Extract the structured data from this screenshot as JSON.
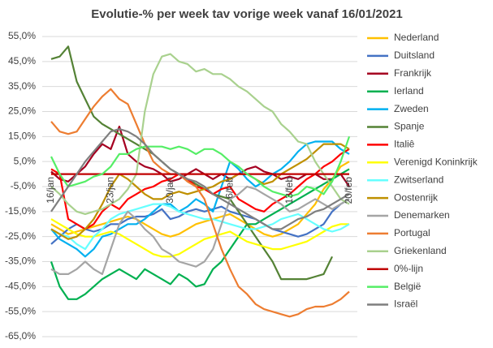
{
  "chart_data": {
    "type": "line",
    "title": "Evolutie-% per week tav vorige week vanaf 16/01/2021",
    "categories": [
      "16/jan",
      null,
      null,
      null,
      null,
      null,
      null,
      "23/jan",
      null,
      null,
      null,
      null,
      null,
      null,
      "30/jan",
      null,
      null,
      null,
      null,
      null,
      null,
      "6/feb",
      null,
      null,
      null,
      null,
      null,
      null,
      "13/feb",
      null,
      null,
      null,
      null,
      null,
      null,
      "20/feb"
    ],
    "ylim": [
      -65,
      55
    ],
    "yticks": [
      {
        "value": -65,
        "label": "-65,0%"
      },
      {
        "value": -55,
        "label": "-55,0%"
      },
      {
        "value": -45,
        "label": "-45,0%"
      },
      {
        "value": -35,
        "label": "-35,0%"
      },
      {
        "value": -25,
        "label": "-25,0%"
      },
      {
        "value": -15,
        "label": "-15,0%"
      },
      {
        "value": -5,
        "label": "-5,0%"
      },
      {
        "value": 5,
        "label": "5,0%"
      },
      {
        "value": 15,
        "label": "15,0%"
      },
      {
        "value": 25,
        "label": "25,0%"
      },
      {
        "value": 35,
        "label": "35,0%"
      },
      {
        "value": 45,
        "label": "45,0%"
      },
      {
        "value": 55,
        "label": "55,0%"
      }
    ],
    "grid": true,
    "series": [
      {
        "name": "Nederland",
        "color": "#FFC000",
        "values": [
          -20,
          -22,
          -24,
          -23,
          -22,
          -21,
          -20,
          -19,
          -18,
          -17,
          -18,
          -20,
          -22,
          -24,
          -25,
          -24,
          -22,
          -20,
          -19,
          -18,
          -17,
          -16,
          -18,
          -20,
          -22,
          -24,
          -25,
          -24,
          -22,
          -20,
          -16,
          -12,
          -6,
          -2,
          3,
          5
        ]
      },
      {
        "name": "Duitsland",
        "color": "#4472C4",
        "values": [
          -28,
          -25,
          -22,
          -20,
          -22,
          -23,
          -22,
          -20,
          -20,
          -18,
          -17,
          -17,
          -16,
          -14,
          -18,
          -17,
          -15,
          -14,
          -15,
          -14,
          -13,
          -15,
          -16,
          -17,
          -18,
          -20,
          -22,
          -23,
          -24,
          -25,
          -24,
          -22,
          -20,
          -15,
          -12,
          -10
        ]
      },
      {
        "name": "Frankrijk",
        "color": "#A50021",
        "values": [
          1,
          -2,
          -3,
          0,
          3,
          8,
          12,
          10,
          19,
          8,
          5,
          3,
          2,
          0,
          -3,
          -2,
          0,
          2,
          0,
          -2,
          0,
          -2,
          0,
          2,
          3,
          1,
          0,
          -2,
          -1,
          -2,
          0,
          0,
          -2,
          -2,
          0,
          -5
        ]
      },
      {
        "name": "Ierland",
        "color": "#00B050",
        "values": [
          -35,
          -45,
          -50,
          -50,
          -48,
          -45,
          -42,
          -40,
          -38,
          -40,
          -42,
          -38,
          -40,
          -42,
          -44,
          -40,
          -42,
          -45,
          -44,
          -38,
          -35,
          -30,
          -25,
          -20,
          -20,
          -18,
          -16,
          -14,
          -12,
          -10,
          -8,
          -6,
          -4,
          -2,
          0,
          2
        ]
      },
      {
        "name": "Zweden",
        "color": "#00B0F0",
        "values": [
          -22,
          -26,
          -28,
          -30,
          -33,
          -30,
          -25,
          -24,
          -22,
          -20,
          -20,
          -18,
          -15,
          -12,
          -12,
          -15,
          -13,
          -10,
          -12,
          -15,
          -5,
          5,
          2,
          -2,
          -5,
          -3,
          0,
          2,
          5,
          9,
          12,
          13,
          13,
          13,
          10,
          8
        ]
      },
      {
        "name": "Spanje",
        "color": "#548235",
        "values": [
          46,
          47,
          51,
          37,
          30,
          23,
          20,
          18,
          16,
          14,
          12,
          10,
          8,
          5,
          2,
          0,
          -2,
          -4,
          -6,
          -8,
          -9,
          -10,
          -15,
          -20,
          -25,
          -30,
          -35,
          -42,
          -42,
          -42,
          -42,
          -41,
          -40,
          -33,
          null,
          null
        ]
      },
      {
        "name": "Italiê",
        "color": "#FF0000",
        "values": [
          2,
          0,
          -18,
          -20,
          -22,
          -20,
          -15,
          -12,
          -14,
          -10,
          -8,
          -6,
          -5,
          -3,
          -2,
          0,
          -2,
          -5,
          -6,
          -8,
          -6,
          -5,
          -10,
          -12,
          -14,
          -15,
          -12,
          -10,
          -8,
          -5,
          -2,
          0,
          3,
          5,
          8,
          10
        ]
      },
      {
        "name": "Verenigd Koninkrijk",
        "color": "#FFFF00",
        "values": [
          -18,
          -20,
          -22,
          -24,
          -25,
          -25,
          -24,
          -23,
          -24,
          -26,
          -28,
          -30,
          -32,
          -33,
          -33,
          -32,
          -30,
          -28,
          -26,
          -25,
          -24,
          -23,
          -25,
          -27,
          -28,
          -29,
          -30,
          -30,
          -29,
          -28,
          -27,
          -25,
          -23,
          -21,
          -20,
          -20
        ]
      },
      {
        "name": "Zwitserland",
        "color": "#66FFFF",
        "values": [
          -22,
          -24,
          -25,
          -28,
          -30,
          -25,
          -22,
          -18,
          -16,
          -15,
          -14,
          -13,
          -12,
          -12,
          -13,
          -15,
          -16,
          -17,
          -18,
          -18,
          -19,
          -20,
          -21,
          -22,
          -22,
          -21,
          -20,
          -18,
          -17,
          -16,
          -18,
          -20,
          -22,
          -23,
          -22,
          -20
        ]
      },
      {
        "name": "Oostenrijk",
        "color": "#BF9000",
        "values": [
          -22,
          -24,
          -26,
          -25,
          -22,
          -18,
          -12,
          -5,
          0,
          -2,
          -5,
          -8,
          -10,
          -10,
          -8,
          -7,
          -8,
          -7,
          -6,
          -5,
          -3,
          -2,
          0,
          0,
          -2,
          -4,
          -3,
          0,
          2,
          4,
          6,
          9,
          12,
          12,
          12,
          10
        ]
      },
      {
        "name": "Denemarken",
        "color": "#A5A5A5",
        "values": [
          -38,
          -40,
          -40,
          -38,
          -35,
          -38,
          -40,
          -30,
          -20,
          -15,
          -18,
          -22,
          -25,
          -30,
          -32,
          -35,
          -36,
          -37,
          -35,
          -30,
          -20,
          -10,
          -8,
          -5,
          -6,
          -8,
          -10,
          -12,
          -15,
          -14,
          -12,
          -10,
          -12,
          -14,
          -12,
          -10
        ]
      },
      {
        "name": "Portugal",
        "color": "#ED7D31",
        "values": [
          21,
          17,
          16,
          17,
          22,
          27,
          31,
          34,
          30,
          28,
          20,
          12,
          5,
          2,
          0,
          0,
          -3,
          -5,
          -10,
          -20,
          -30,
          -38,
          -45,
          -48,
          -52,
          -54,
          -55,
          -56,
          -57,
          -56,
          -54,
          -53,
          -53,
          -52,
          -50,
          -47
        ]
      },
      {
        "name": "Griekenland",
        "color": "#A9D18E",
        "values": [
          -5,
          -8,
          -12,
          -15,
          -16,
          -15,
          -14,
          -12,
          -10,
          -6,
          0,
          25,
          40,
          47,
          48,
          45,
          44,
          41,
          42,
          40,
          40,
          38,
          35,
          33,
          30,
          27,
          25,
          20,
          17,
          13,
          12,
          5,
          0,
          -5,
          -10,
          -12
        ]
      },
      {
        "name": "0%-lijn",
        "color": "#C00000",
        "values": [
          0,
          0,
          0,
          0,
          0,
          0,
          0,
          0,
          0,
          0,
          0,
          0,
          0,
          0,
          0,
          0,
          0,
          0,
          0,
          0,
          0,
          0,
          0,
          0,
          0,
          0,
          0,
          0,
          0,
          0,
          0,
          0,
          0,
          0,
          0,
          0
        ]
      },
      {
        "name": "België",
        "color": "#55EE66",
        "values": [
          7,
          0,
          -5,
          -4,
          -3,
          -1,
          0,
          3,
          8,
          8,
          10,
          11,
          11,
          11,
          10,
          11,
          10,
          8,
          10,
          10,
          8,
          5,
          3,
          0,
          -2,
          -5,
          -7,
          -8,
          -9,
          -8,
          -5,
          -6,
          -8,
          -3,
          5,
          15
        ]
      },
      {
        "name": "Israël",
        "color": "#7F7F7F",
        "values": [
          -15,
          -10,
          -5,
          0,
          5,
          9,
          13,
          17,
          18,
          17,
          15,
          12,
          8,
          5,
          2,
          0,
          -2,
          -3,
          -5,
          -8,
          -10,
          -12,
          -14,
          -16,
          -18,
          -20,
          -22,
          -22,
          -20,
          -18,
          -17,
          -15,
          -14,
          -12,
          -10,
          -8
        ]
      }
    ]
  }
}
